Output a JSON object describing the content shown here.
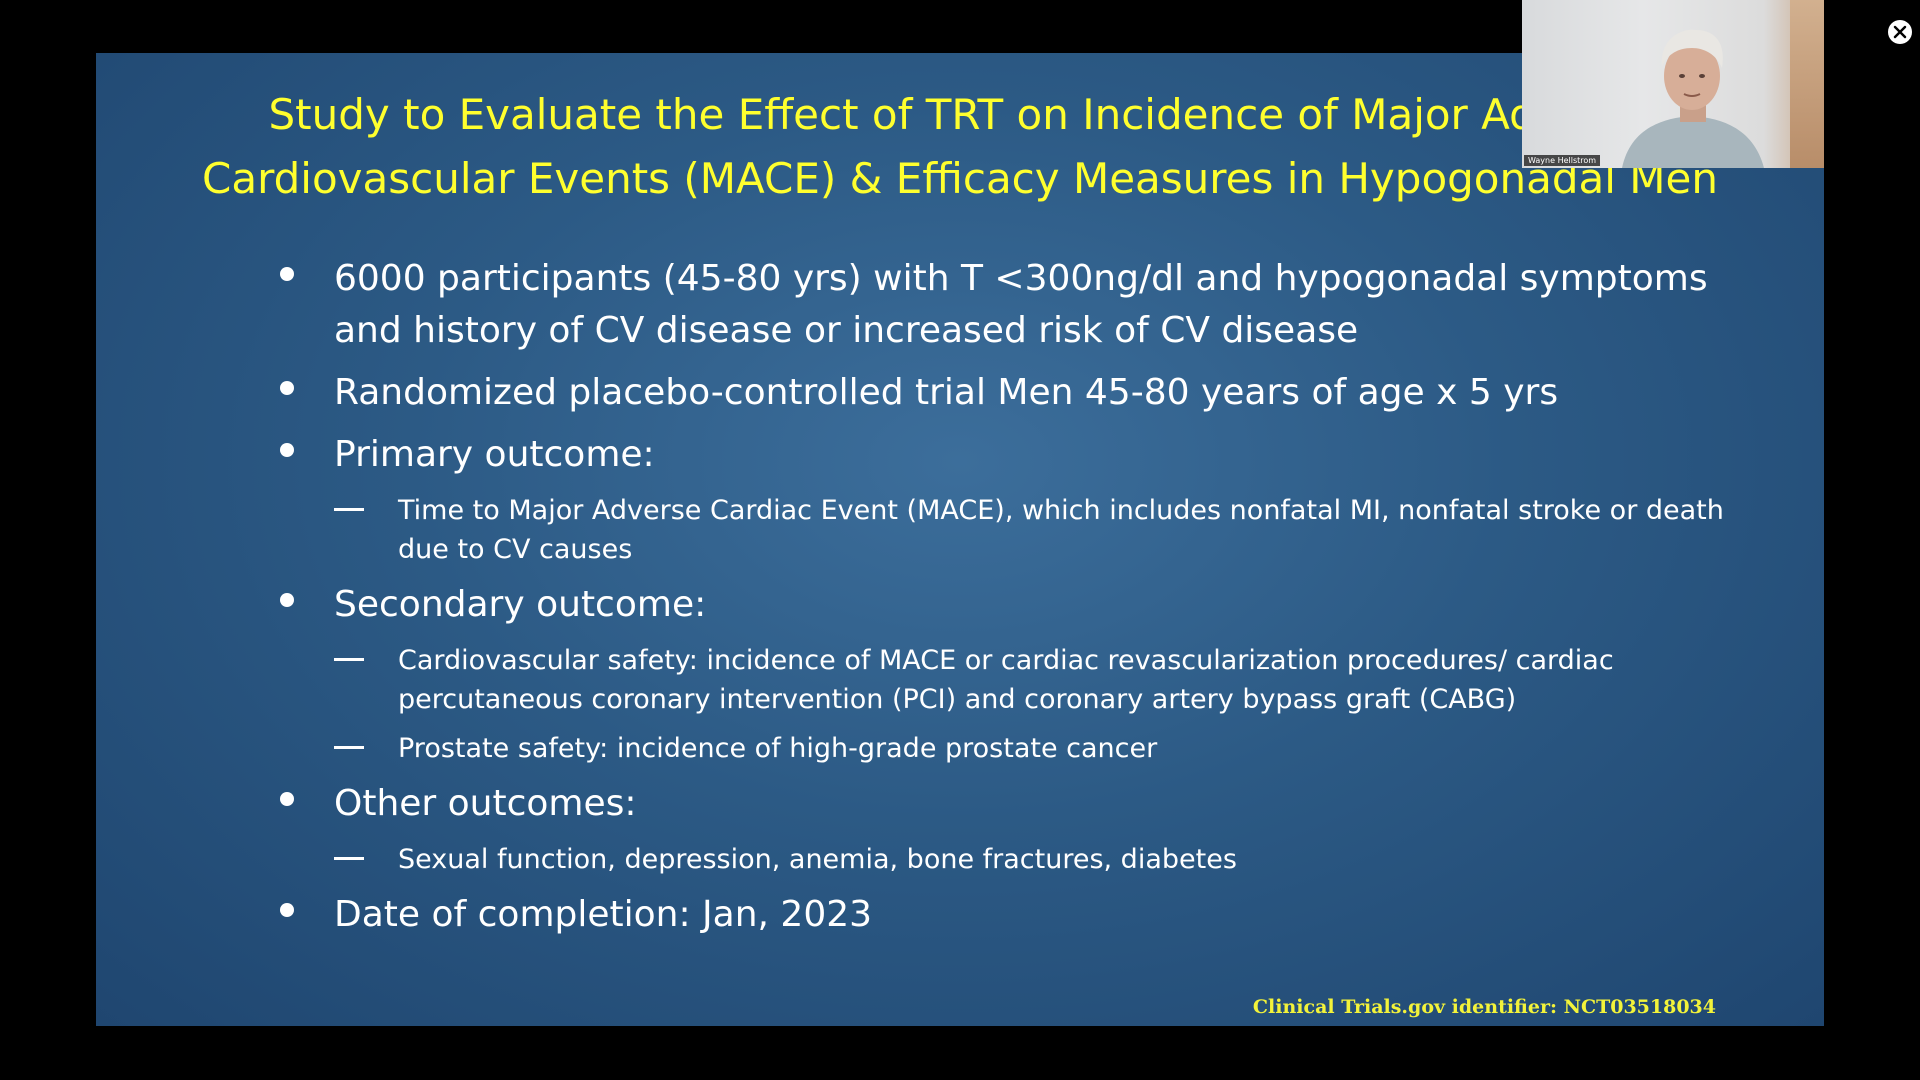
{
  "slide": {
    "title_line1": "Study to Evaluate the Effect of TRT on  Incidence of Major Adverse",
    "title_line2": "Cardiovascular Events (MACE) & Efficacy Measures in Hypogonadal Men",
    "bullets": [
      {
        "text": "6000 participants (45-80 yrs) with T <300ng/dl and hypogonadal symptoms and history of CV disease or increased risk of CV disease",
        "subs": []
      },
      {
        "text": "Randomized placebo-controlled trial Men 45-80 years of age x 5 yrs",
        "subs": []
      },
      {
        "text": "Primary outcome:",
        "subs": [
          "Time to Major Adverse Cardiac Event (MACE), which includes nonfatal MI, nonfatal stroke or death due to CV causes"
        ]
      },
      {
        "text": "Secondary outcome:",
        "subs": [
          "Cardiovascular safety: incidence of MACE or cardiac revascularization procedures/ cardiac percutaneous coronary intervention (PCI) and coronary artery bypass graft (CABG)",
          "Prostate safety: incidence of high-grade prostate cancer"
        ]
      },
      {
        "text": "Other outcomes:",
        "subs": [
          "Sexual function, depression, anemia, bone fractures, diabetes"
        ]
      },
      {
        "text": "Date of completion: Jan, 2023",
        "subs": []
      }
    ],
    "footer": "Clinical Trials.gov identifier: NCT03518034"
  },
  "webcam": {
    "participant_name": "Wayne Hellstrom"
  },
  "controls": {
    "close_icon": "close-icon"
  },
  "colors": {
    "title": "#ffff2e",
    "body_text": "#ffffff",
    "footer": "#f3f33a",
    "slide_bg": "#2c5a85"
  }
}
